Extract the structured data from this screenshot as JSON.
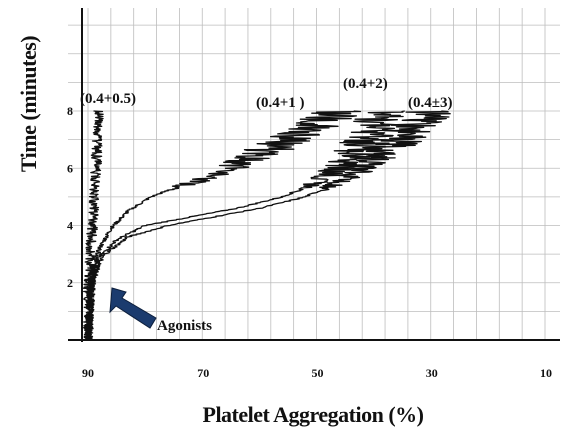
{
  "chart_data": {
    "type": "line",
    "title": "",
    "xlabel": "Platelet Aggregation (%)",
    "ylabel": "Time (minutes)",
    "xlim": [
      90,
      10
    ],
    "ylim": [
      0,
      10
    ],
    "x_reversed": true,
    "x_ticks": [
      90,
      70,
      50,
      30,
      10
    ],
    "y_ticks": [
      2,
      4,
      6,
      8
    ],
    "grid": true,
    "series": [
      {
        "name": "(0.4+0.5)",
        "points": [
          [
            90,
            0
          ],
          [
            89.8,
            1
          ],
          [
            90,
            2
          ],
          [
            89.6,
            3
          ],
          [
            89.2,
            4
          ],
          [
            88.9,
            5
          ],
          [
            88.6,
            6
          ],
          [
            88.4,
            7
          ],
          [
            88.2,
            8
          ]
        ]
      },
      {
        "name": "(0.4+1 )",
        "points": [
          [
            90,
            0
          ],
          [
            89.6,
            1.5
          ],
          [
            89,
            2.5
          ],
          [
            88,
            3.2
          ],
          [
            86,
            3.9
          ],
          [
            83,
            4.5
          ],
          [
            79,
            5.0
          ],
          [
            75,
            5.3
          ],
          [
            70,
            5.6
          ],
          [
            64,
            6.1
          ],
          [
            58,
            6.7
          ],
          [
            52,
            7.3
          ],
          [
            46,
            8.0
          ]
        ]
      },
      {
        "name": "(0.4+2)",
        "points": [
          [
            90,
            0
          ],
          [
            89.4,
            2.0
          ],
          [
            88,
            2.9
          ],
          [
            85,
            3.5
          ],
          [
            80,
            4.0
          ],
          [
            72,
            4.3
          ],
          [
            64,
            4.6
          ],
          [
            56,
            5.0
          ],
          [
            50,
            5.5
          ],
          [
            45,
            6.2
          ],
          [
            41,
            7.0
          ],
          [
            38,
            8.0
          ]
        ]
      },
      {
        "name": "(0.4±3)",
        "points": [
          [
            90,
            0
          ],
          [
            89.3,
            2.3
          ],
          [
            87,
            3.0
          ],
          [
            83,
            3.6
          ],
          [
            76,
            4.0
          ],
          [
            68,
            4.3
          ],
          [
            60,
            4.6
          ],
          [
            52,
            5.0
          ],
          [
            45,
            5.6
          ],
          [
            40,
            6.3
          ],
          [
            35,
            7.1
          ],
          [
            30,
            8.0
          ]
        ]
      }
    ],
    "annotations": [
      {
        "text": "Agonists",
        "arrow": "points to baseline near 2 minutes at 90%"
      }
    ]
  }
}
